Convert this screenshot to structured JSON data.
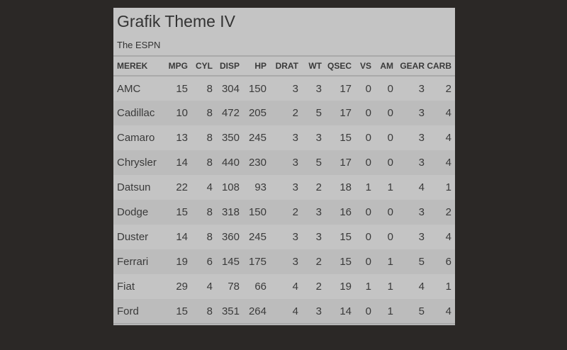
{
  "title": "Grafik Theme IV",
  "subtitle": "The ESPN",
  "columns": [
    "MEREK",
    "MPG",
    "CYL",
    "DISP",
    "HP",
    "DRAT",
    "WT",
    "QSEC",
    "VS",
    "AM",
    "GEAR",
    "CARB"
  ],
  "rows": [
    [
      "AMC",
      "15",
      "8",
      "304",
      "150",
      "3",
      "3",
      "17",
      "0",
      "0",
      "3",
      "2"
    ],
    [
      "Cadillac",
      "10",
      "8",
      "472",
      "205",
      "2",
      "5",
      "17",
      "0",
      "0",
      "3",
      "4"
    ],
    [
      "Camaro",
      "13",
      "8",
      "350",
      "245",
      "3",
      "3",
      "15",
      "0",
      "0",
      "3",
      "4"
    ],
    [
      "Chrysler",
      "14",
      "8",
      "440",
      "230",
      "3",
      "5",
      "17",
      "0",
      "0",
      "3",
      "4"
    ],
    [
      "Datsun",
      "22",
      "4",
      "108",
      "93",
      "3",
      "2",
      "18",
      "1",
      "1",
      "4",
      "1"
    ],
    [
      "Dodge",
      "15",
      "8",
      "318",
      "150",
      "2",
      "3",
      "16",
      "0",
      "0",
      "3",
      "2"
    ],
    [
      "Duster",
      "14",
      "8",
      "360",
      "245",
      "3",
      "3",
      "15",
      "0",
      "0",
      "3",
      "4"
    ],
    [
      "Ferrari",
      "19",
      "6",
      "145",
      "175",
      "3",
      "2",
      "15",
      "0",
      "1",
      "5",
      "6"
    ],
    [
      "Fiat",
      "29",
      "4",
      "78",
      "66",
      "4",
      "2",
      "19",
      "1",
      "1",
      "4",
      "1"
    ],
    [
      "Ford",
      "15",
      "8",
      "351",
      "264",
      "4",
      "3",
      "14",
      "0",
      "1",
      "5",
      "4"
    ]
  ]
}
